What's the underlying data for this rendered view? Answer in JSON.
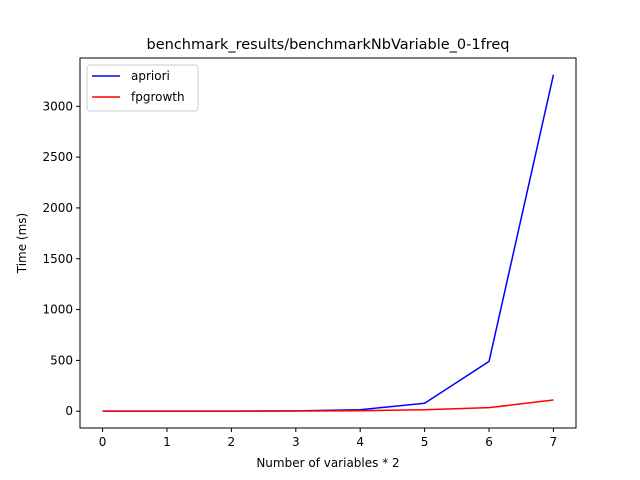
{
  "chart_data": {
    "type": "line",
    "title": "benchmark_results/benchmarkNbVariable_0-1freq",
    "xlabel": "Number of variables * 2",
    "ylabel": "Time (ms)",
    "x": [
      0,
      1,
      2,
      3,
      4,
      5,
      6,
      7
    ],
    "xticks": [
      0,
      1,
      2,
      3,
      4,
      5,
      6,
      7
    ],
    "yticks": [
      0,
      500,
      1000,
      1500,
      2000,
      2500,
      3000
    ],
    "xlim": [
      -0.35,
      7.35
    ],
    "ylim": [
      -165,
      3475
    ],
    "grid": false,
    "legend_position": "top-left",
    "series": [
      {
        "name": "apriori",
        "color": "#0000ff",
        "values": [
          1,
          0.5,
          0.5,
          4,
          15,
          78,
          490,
          3310
        ]
      },
      {
        "name": "fpgrowth",
        "color": "#ff0000",
        "values": [
          1,
          0.5,
          0.5,
          2,
          5,
          15,
          35,
          110
        ]
      }
    ]
  }
}
